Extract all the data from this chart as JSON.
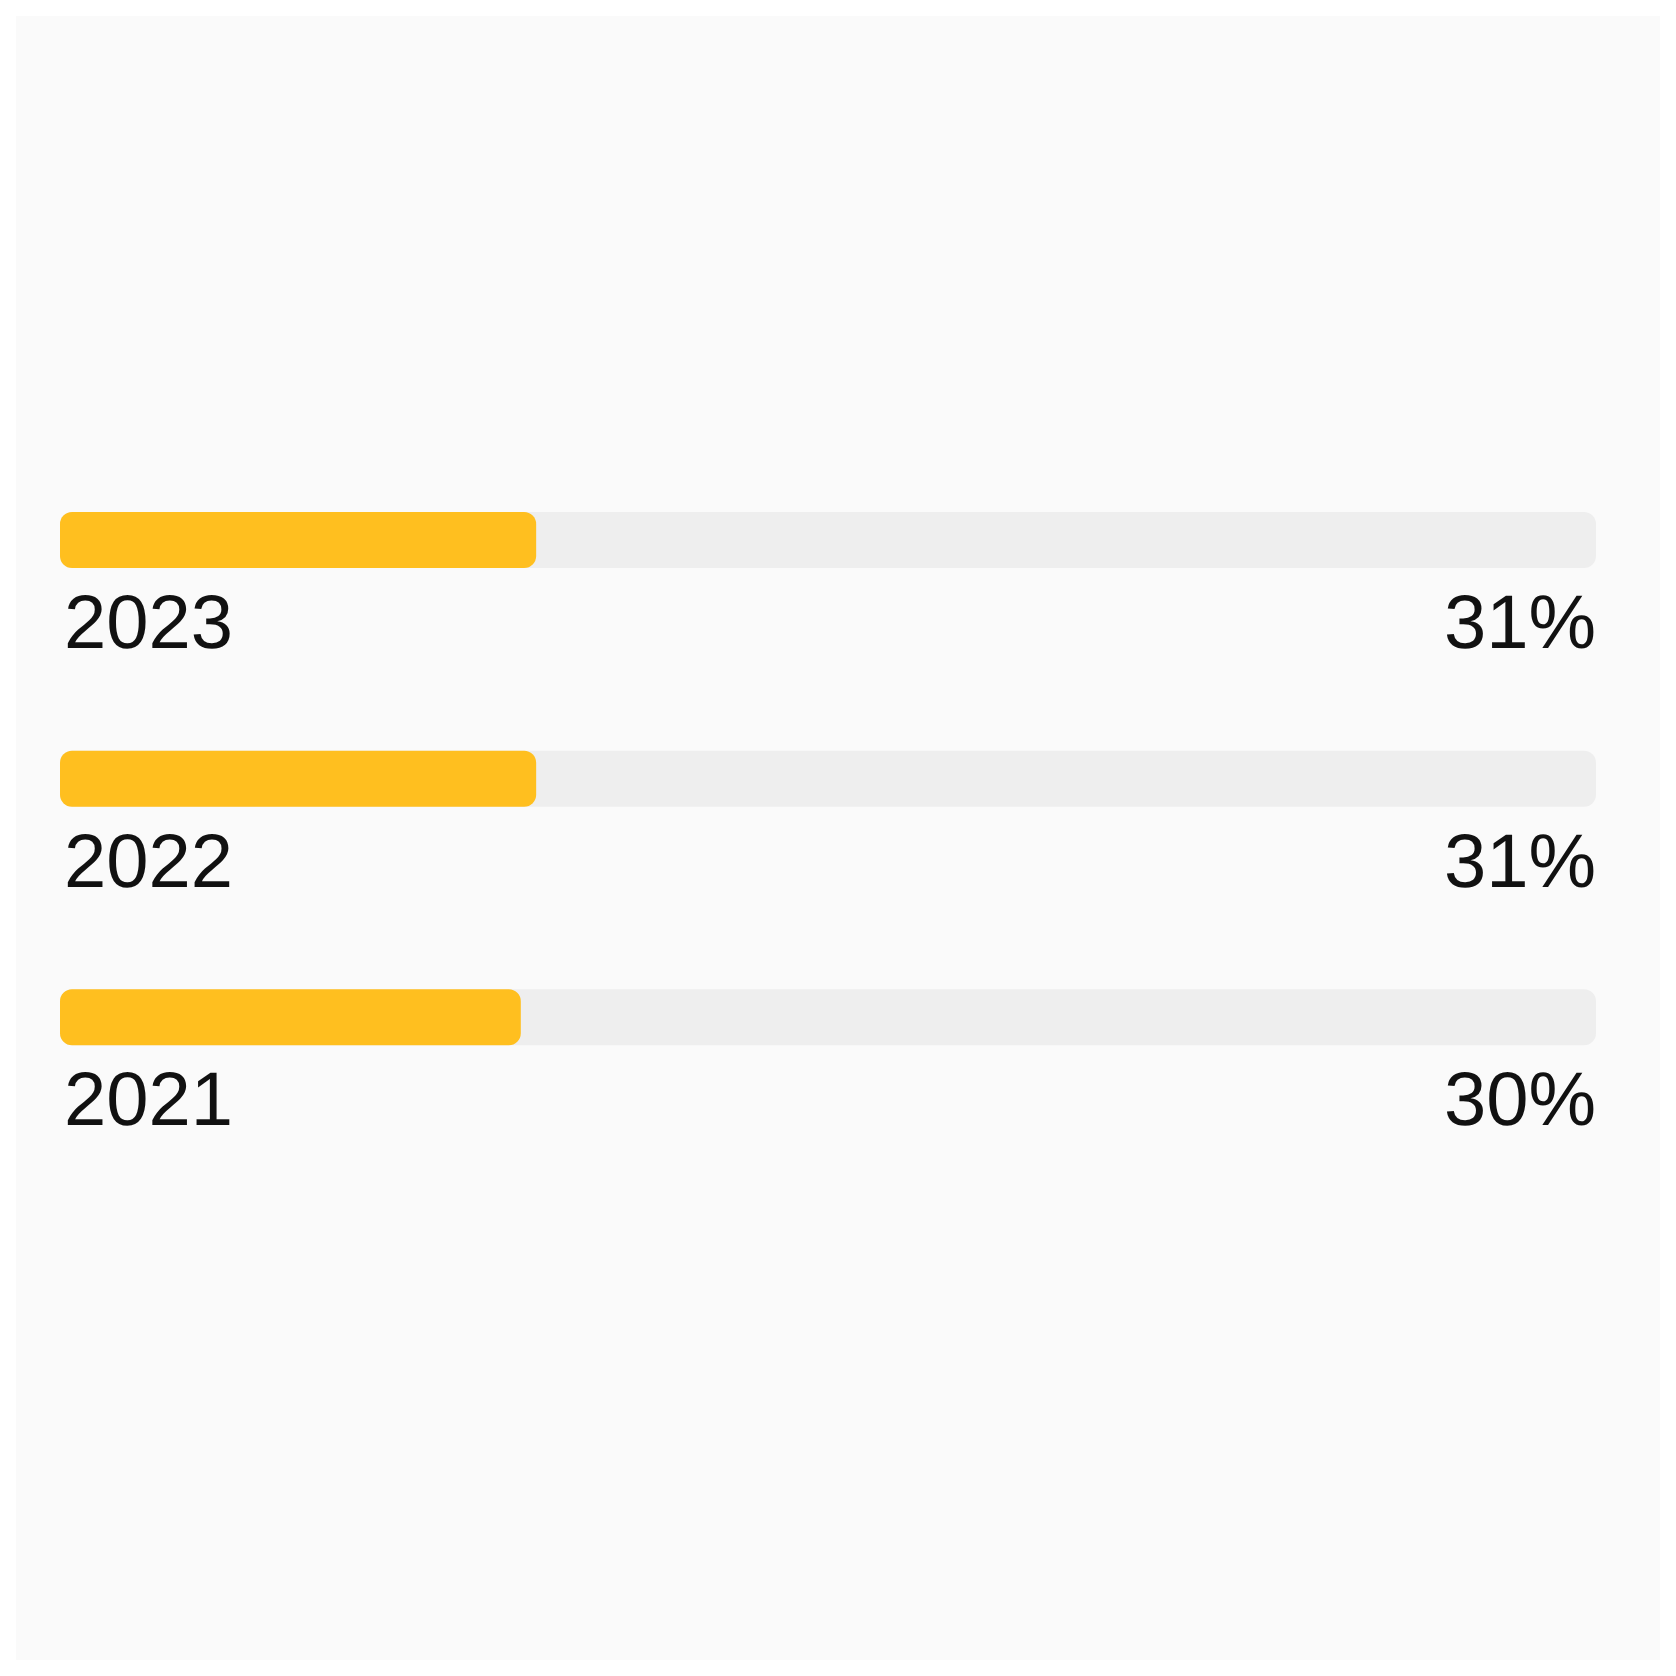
{
  "chart_data": {
    "type": "bar",
    "orientation": "horizontal",
    "categories": [
      "2023",
      "2022",
      "2021"
    ],
    "values": [
      31,
      31,
      30
    ],
    "value_labels": [
      "31%",
      "31%",
      "30%"
    ],
    "color": "#ffbf1f",
    "xlim": [
      0,
      100
    ],
    "tick_labels": false
  }
}
